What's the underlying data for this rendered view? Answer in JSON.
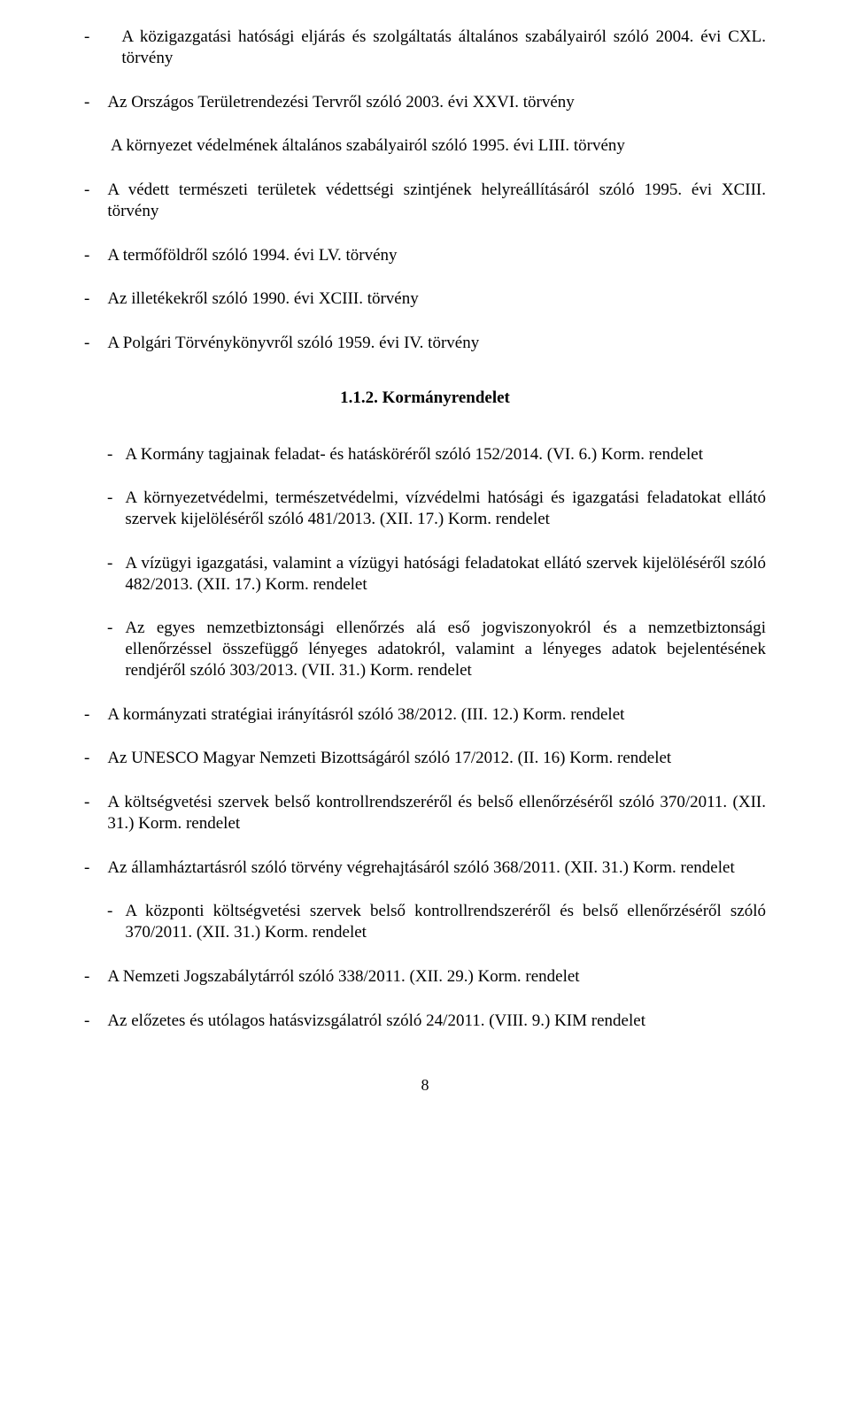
{
  "section1": {
    "items": [
      "A közigazgatási hatósági eljárás és szolgáltatás általános szabályairól szóló 2004. évi CXL. törvény",
      "Az Országos Területrendezési Tervről szóló 2003. évi XXVI. törvény"
    ],
    "inset": "A környezet védelmének általános szabályairól szóló 1995. évi LIII. törvény",
    "items2": [
      "A védett természeti területek védettségi szintjének helyreállításáról szóló 1995. évi XCIII. törvény",
      "A termőföldről szóló 1994. évi LV. törvény",
      "Az illetékekről szóló 1990. évi XCIII. törvény",
      "A Polgári Törvénykönyvről szóló 1959. évi IV. törvény"
    ]
  },
  "heading": "1.1.2. Kormányrendelet",
  "section2": {
    "items": [
      "A Kormány tagjainak feladat- és hatásköréről szóló 152/2014. (VI. 6.) Korm. rendelet",
      "A környezetvédelmi, természetvédelmi, vízvédelmi hatósági és igazgatási feladatokat ellátó szervek kijelöléséről szóló 481/2013. (XII. 17.) Korm. rendelet",
      "A vízügyi igazgatási, valamint a vízügyi hatósági feladatokat ellátó szervek kijelöléséről szóló 482/2013. (XII. 17.) Korm. rendelet",
      "Az egyes nemzetbiztonsági ellenőrzés alá eső jogviszonyokról és a nemzetbiztonsági ellenőrzéssel összefüggő lényeges adatokról, valamint a lényeges adatok bejelentésének rendjéről szóló 303/2013. (VII. 31.) Korm. rendelet"
    ],
    "items_outdent": [
      "A kormányzati stratégiai irányításról szóló 38/2012. (III. 12.) Korm. rendelet",
      "Az UNESCO Magyar Nemzeti Bizottságáról szóló 17/2012. (II. 16) Korm. rendelet",
      "A költségvetési szervek belső kontrollrendszeréről és belső ellenőrzéséről szóló 370/2011. (XII. 31.) Korm. rendelet",
      "Az államháztartásról szóló törvény végrehajtásáról szóló 368/2011. (XII. 31.) Korm. rendelet"
    ],
    "item_indent": "A központi költségvetési szervek belső kontrollrendszeréről és belső ellenőrzéséről szóló 370/2011. (XII. 31.) Korm. rendelet",
    "items_outdent2": [
      "A Nemzeti Jogszabálytárról szóló 338/2011. (XII. 29.) Korm. rendelet",
      "Az előzetes és utólagos hatásvizsgálatról szóló 24/2011. (VIII. 9.) KIM rendelet"
    ]
  },
  "pagenum": "8"
}
